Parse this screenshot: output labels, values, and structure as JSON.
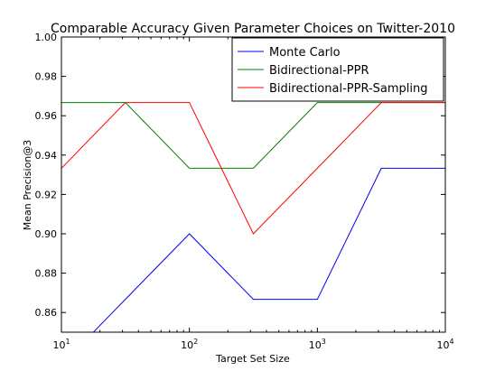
{
  "chart_data": {
    "type": "line",
    "title": "Comparable Accuracy Given Parameter Choices  on Twitter-2010",
    "xlabel": "Target Set Size",
    "ylabel": "Mean Precision@3",
    "x_scale": "log",
    "xlim": [
      10,
      10000
    ],
    "ylim": [
      0.85,
      1.0
    ],
    "x_ticks": [
      {
        "value": 10,
        "base": "10",
        "exp": "1"
      },
      {
        "value": 100,
        "base": "10",
        "exp": "2"
      },
      {
        "value": 1000,
        "base": "10",
        "exp": "3"
      },
      {
        "value": 10000,
        "base": "10",
        "exp": "4"
      }
    ],
    "y_ticks": [
      "0.86",
      "0.88",
      "0.90",
      "0.92",
      "0.94",
      "0.96",
      "0.98",
      "1.00"
    ],
    "grid": false,
    "legend_position": "top-right",
    "x": [
      10,
      31.6,
      100,
      316,
      1000,
      3162,
      10000
    ],
    "series": [
      {
        "name": "Monte Carlo",
        "color": "#0000ff",
        "values": [
          0.8333,
          0.8667,
          0.9,
          0.8667,
          0.8667,
          0.9333,
          0.9333
        ]
      },
      {
        "name": "Bidirectional-PPR",
        "color": "#008000",
        "values": [
          0.9667,
          0.9667,
          0.9333,
          0.9333,
          0.9667,
          0.9667,
          0.9667
        ]
      },
      {
        "name": "Bidirectional-PPR-Sampling",
        "color": "#ff0000",
        "values": [
          0.9333,
          0.9667,
          0.9667,
          0.9,
          0.9333,
          0.9667,
          0.9667
        ]
      }
    ]
  }
}
